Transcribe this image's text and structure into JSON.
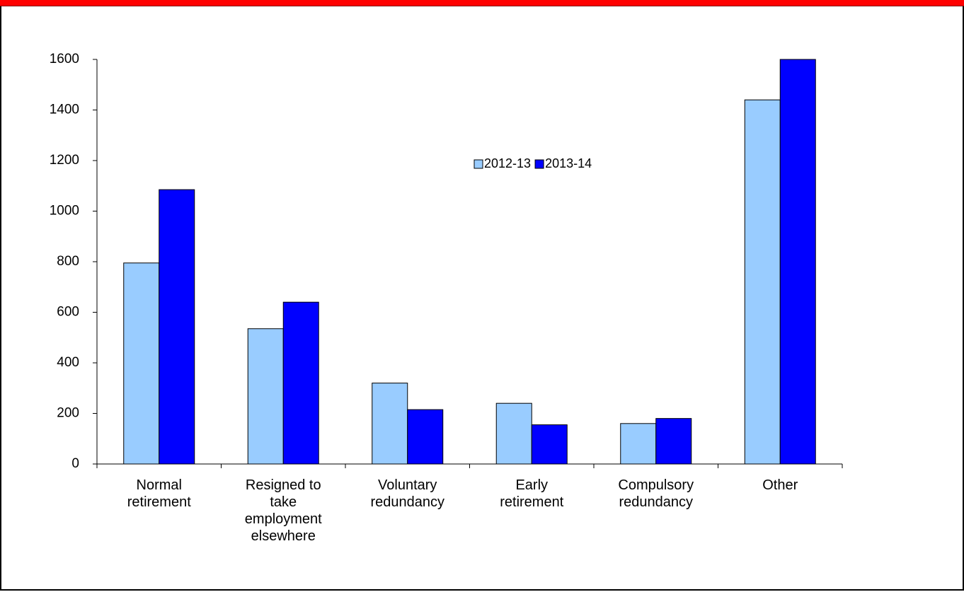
{
  "chart_data": {
    "type": "bar",
    "categories": [
      "Normal retirement",
      "Resigned to take employment elsewhere",
      "Voluntary redundancy",
      "Early retirement",
      "Compulsory redundancy",
      "Other"
    ],
    "series": [
      {
        "name": "2012-13",
        "color": "#99ccff",
        "values": [
          795,
          535,
          320,
          240,
          160,
          1440
        ]
      },
      {
        "name": "2013-14",
        "color": "#0000ff",
        "values": [
          1085,
          640,
          215,
          155,
          180,
          1600
        ]
      }
    ],
    "ylim": [
      0,
      1600
    ],
    "yticks": [
      0,
      200,
      400,
      600,
      800,
      1000,
      1200,
      1400,
      1600
    ],
    "grid": false
  }
}
